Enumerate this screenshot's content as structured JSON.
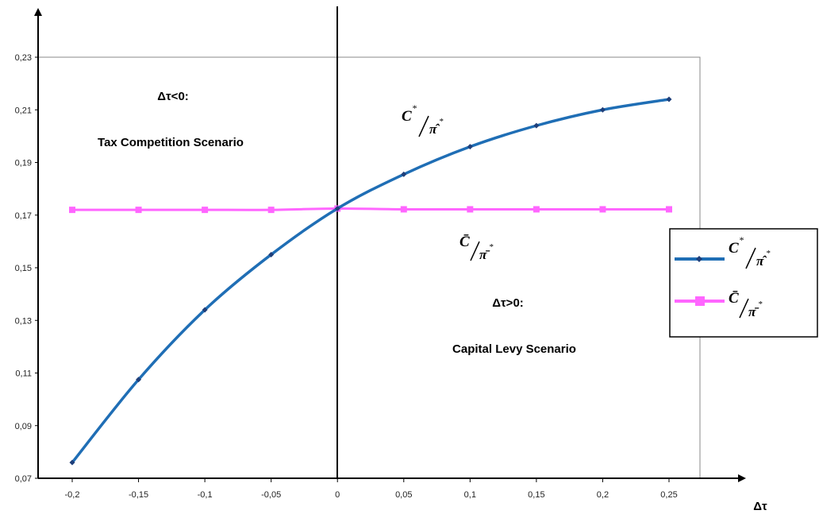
{
  "chart_data": {
    "type": "line",
    "x": [
      -0.2,
      -0.15,
      -0.1,
      -0.05,
      0,
      0.05,
      0.1,
      0.15,
      0.2,
      0.25
    ],
    "x_tick_labels": [
      "-0,2",
      "-0,15",
      "-0,1",
      "-0,05",
      "0",
      "0,05",
      "0,1",
      "0,15",
      "0,2",
      "0,25"
    ],
    "y_ticks": [
      0.07,
      0.09,
      0.11,
      0.13,
      0.15,
      0.17,
      0.19,
      0.21,
      0.23
    ],
    "y_tick_labels": [
      "0,07",
      "0,09",
      "0,11",
      "0,13",
      "0,15",
      "0,17",
      "0,19",
      "0,21",
      "0,23"
    ],
    "xlim": [
      -0.2,
      0.25
    ],
    "ylim": [
      0.07,
      0.23
    ],
    "xlabel": "Δτ",
    "ylabel": "",
    "grid": false,
    "legend_position": "right",
    "series": [
      {
        "name": "C*/π̂*",
        "color": "#1f6eb5",
        "marker": "diamond",
        "values": [
          0.076,
          0.1075,
          0.134,
          0.155,
          0.1725,
          0.1855,
          0.196,
          0.204,
          0.21,
          0.214
        ]
      },
      {
        "name": "C̄/π̄*",
        "color": "#ff66ff",
        "marker": "square",
        "values": [
          0.172,
          0.172,
          0.172,
          0.172,
          0.1725,
          0.1722,
          0.1722,
          0.1722,
          0.1722,
          0.1722
        ]
      }
    ],
    "annotations": {
      "left_title": "Δτ<0:",
      "left_subtitle": "Tax Competition Scenario",
      "right_title": "Δτ>0:",
      "right_subtitle": "Capital Levy Scenario",
      "series1_label": {
        "base": "C",
        "sup": "*",
        "den": "π̂",
        "den_sup": "*"
      },
      "series2_label": {
        "base": "C̄",
        "den": "π̄",
        "den_sup": "*"
      }
    }
  }
}
